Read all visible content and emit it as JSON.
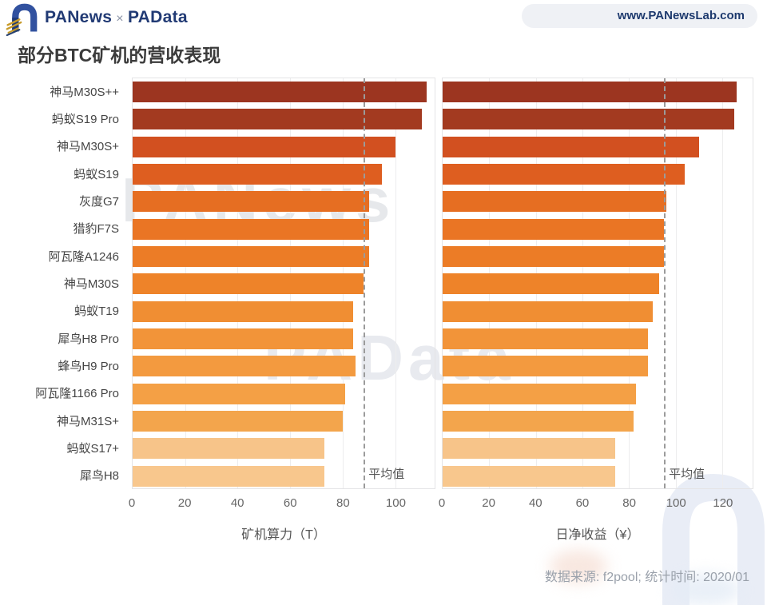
{
  "header": {
    "brand_left": "PANews",
    "brand_separator": "×",
    "brand_right": "PAData",
    "website": "www.PANewsLab.com"
  },
  "title": "部分BTC矿机的营收表现",
  "watermarks": {
    "text_left": "PANews",
    "text_center": "PAData"
  },
  "footer": {
    "source": "数据来源: f2pool; 统计时间: 2020/01"
  },
  "chart_data": {
    "type": "bar",
    "orientation": "horizontal",
    "categories": [
      "神马M30S++",
      "蚂蚁S19 Pro",
      "神马M30S+",
      "蚂蚁S19",
      "灰度G7",
      "猎豹F7S",
      "阿瓦隆A1246",
      "神马M30S",
      "蚂蚁T19",
      "犀鸟H8 Pro",
      "蜂鸟H9 Pro",
      "阿瓦隆1166 Pro",
      "神马M31S+",
      "蚂蚁S17+",
      "犀鸟H8"
    ],
    "series": [
      {
        "name": "矿机算力（T）",
        "values": [
          112,
          110,
          100,
          95,
          90,
          90,
          90,
          88,
          84,
          84,
          85,
          81,
          80,
          73,
          73
        ],
        "ticks": [
          0,
          20,
          40,
          60,
          80,
          100
        ],
        "axis_max": 115,
        "average": 88,
        "average_label": "平均值"
      },
      {
        "name": "日净收益（¥）",
        "values": [
          126,
          125,
          110,
          104,
          96,
          95,
          95,
          93,
          90,
          88,
          88,
          83,
          82,
          74,
          74
        ],
        "ticks": [
          0,
          20,
          40,
          60,
          80,
          100,
          120
        ],
        "axis_max": 133,
        "average": 95,
        "average_label": "平均值"
      }
    ],
    "bar_colors": [
      "#9C3520",
      "#A33A20",
      "#D25020",
      "#DE5E20",
      "#E66E22",
      "#EA7524",
      "#EC7C26",
      "#EE8329",
      "#F08E33",
      "#F29439",
      "#F39A3F",
      "#F4A045",
      "#F3A54C",
      "#F7C489",
      "#F8C78D"
    ],
    "average_line_color": "#9B9B9B",
    "grid": true,
    "legend": false
  }
}
